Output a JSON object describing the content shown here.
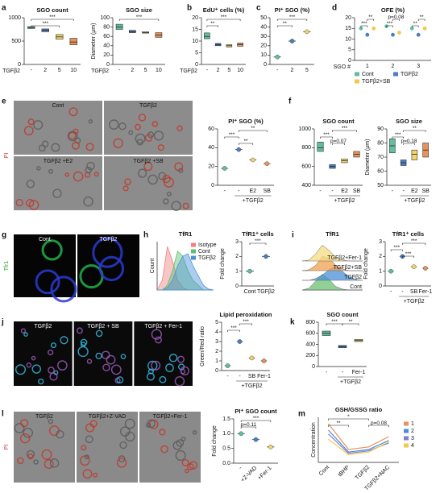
{
  "panels": [
    "a",
    "b",
    "c",
    "d",
    "e",
    "f",
    "g",
    "h",
    "i",
    "j",
    "k",
    "l",
    "m"
  ],
  "images": [
    {
      "labels": [
        "Cont",
        "TGFβ2",
        "TGFβ2 +E2",
        "TGFβ2 +SB"
      ],
      "side_label": "PI",
      "side_label_color": "#d62728",
      "background": "#8c8c8c"
    },
    {
      "labels": [
        "Cont",
        "TGFβ2"
      ],
      "side_label": "Tfr1",
      "side_label_color": "#2ca02c",
      "background": "#050505"
    },
    {
      "labels": [
        "TGFβ2",
        "TGFβ2 + SB",
        "TGFβ2 + Fer-1"
      ],
      "background": "#0a0a0a"
    },
    {
      "labels": [
        "TGFβ2",
        "TGFβ2+Z-VAD",
        "TGFβ2+Fer-1"
      ],
      "side_label": "PI",
      "side_label_color": "#d62728",
      "background": "#8a8a8a"
    }
  ],
  "chart_data": [
    {
      "type": "box",
      "title": "SGO count",
      "xlabel": "TGFβ2",
      "categories": [
        "-",
        "2",
        "5",
        "10"
      ],
      "values": [
        790,
        730,
        590,
        480
      ],
      "lower": [
        770,
        700,
        540,
        420
      ],
      "upper": [
        810,
        760,
        640,
        560
      ],
      "colors": [
        "#5fbfa0",
        "#4a7fc1",
        "#f2d66b",
        "#e8925a"
      ],
      "ylim": [
        0,
        1000
      ],
      "yticks": [
        0,
        500,
        1000
      ],
      "annotations": [
        "***",
        "***"
      ]
    },
    {
      "type": "box",
      "title": "SGO size",
      "ylabel": "Diameter (μm)",
      "xlabel": "TGFβ2",
      "categories": [
        "-",
        "2",
        "5",
        "10"
      ],
      "values": [
        80,
        70,
        68,
        63
      ],
      "lower": [
        75,
        68,
        67,
        58
      ],
      "upper": [
        86,
        73,
        70,
        68
      ],
      "colors": [
        "#5fbfa0",
        "#4a7fc1",
        "#f2d66b",
        "#e8925a"
      ],
      "ylim": [
        0,
        100
      ],
      "yticks": [
        0,
        20,
        40,
        60,
        80,
        100
      ],
      "annotations": [
        "***"
      ]
    },
    {
      "type": "box",
      "title": "EdU⁺ cells (%)",
      "xlabel": "TGFβ2",
      "categories": [
        "-",
        "2",
        "5",
        "10"
      ],
      "values": [
        12,
        8.5,
        8,
        8.5
      ],
      "lower": [
        11,
        8,
        7.5,
        7.8
      ],
      "upper": [
        13.5,
        9,
        8.5,
        9.2
      ],
      "colors": [
        "#5fbfa0",
        "#4a7fc1",
        "#f2d66b",
        "#e8925a"
      ],
      "ylim": [
        0,
        20
      ],
      "yticks": [
        0,
        5,
        10,
        15,
        20
      ],
      "annotations": [
        "***",
        "**"
      ]
    },
    {
      "type": "dot",
      "title": "PI⁺ SGO (%)",
      "categories": [
        "-",
        "2",
        "5"
      ],
      "values": [
        8,
        25,
        35
      ],
      "colors": [
        "#5fbfa0",
        "#4a7fc1",
        "#f2d66b"
      ],
      "ylim": [
        0,
        50
      ],
      "yticks": [
        0,
        10,
        20,
        30,
        40,
        50
      ],
      "annotations": [
        "***",
        "**"
      ]
    },
    {
      "type": "grouped",
      "title": "OFE (%)",
      "xlabel": "SGO #",
      "categories": [
        "1",
        "2",
        "3"
      ],
      "series": [
        {
          "name": "Cont",
          "color": "#5fbfa0",
          "values": [
            15,
            16,
            15
          ]
        },
        {
          "name": "TGFβ2",
          "color": "#4a7fc1",
          "values": [
            12,
            12,
            12
          ]
        },
        {
          "name": "TGFβ2+SB",
          "color": "#f2c94c",
          "values": [
            15,
            13,
            15
          ]
        }
      ],
      "ylim": [
        0,
        20
      ],
      "yticks": [
        0,
        5,
        10,
        15,
        20
      ],
      "legend": "bottom",
      "annotations": [
        "***",
        "**",
        "***",
        "p=0.08",
        "**",
        "**"
      ]
    },
    {
      "type": "dot",
      "title": "PI⁺ SGO (%)",
      "categories": [
        "-",
        "-",
        "E2",
        "SB"
      ],
      "group_label": "+TGFβ2",
      "values": [
        18,
        38,
        27,
        23
      ],
      "colors": [
        "#5fbfa0",
        "#4a7fc1",
        "#f2d66b",
        "#e8925a"
      ],
      "ylim": [
        0,
        60
      ],
      "yticks": [
        0,
        20,
        40,
        60
      ],
      "annotations": [
        "***",
        "**",
        "**"
      ]
    },
    {
      "type": "box",
      "title": "SGO count",
      "categories": [
        "-",
        "-",
        "E2",
        "SB"
      ],
      "group_label": "+TGFβ2",
      "values": [
        800,
        600,
        660,
        730
      ],
      "lower": [
        760,
        580,
        640,
        700
      ],
      "upper": [
        860,
        620,
        680,
        760
      ],
      "colors": [
        "#5fbfa0",
        "#4a7fc1",
        "#f2d66b",
        "#e8925a"
      ],
      "ylim": [
        400,
        1000
      ],
      "yticks": [
        400,
        600,
        800,
        1000
      ],
      "annotations": [
        "***",
        "p=0.07",
        "***"
      ]
    },
    {
      "type": "box",
      "title": "SGO size",
      "ylabel": "Diameter (μm)",
      "categories": [
        "-",
        "-",
        "E2",
        "SB"
      ],
      "group_label": "+TGFβ2",
      "values": [
        78,
        66,
        72,
        75
      ],
      "lower": [
        73,
        64,
        68,
        70
      ],
      "upper": [
        83,
        68,
        75,
        80
      ],
      "colors": [
        "#5fbfa0",
        "#4a7fc1",
        "#f2d66b",
        "#e8925a"
      ],
      "ylim": [
        50,
        90
      ],
      "yticks": [
        50,
        60,
        70,
        80,
        90
      ],
      "annotations": [
        "***",
        "p=0.18",
        "**"
      ]
    },
    {
      "type": "density",
      "title": "TfR1",
      "ylabel": "Count",
      "ylim": [
        0,
        1
      ],
      "legend": "top-right",
      "series": [
        {
          "name": "Isotype",
          "color": "#f08080",
          "values": [
            0,
            0.2,
            0.9,
            0.6,
            0.2,
            0.05,
            0,
            0,
            0,
            0,
            0,
            0
          ]
        },
        {
          "name": "Cont",
          "color": "#5fbf70",
          "values": [
            0,
            0,
            0.1,
            0.4,
            0.8,
            0.7,
            0.4,
            0.2,
            0.1,
            0,
            0,
            0
          ]
        },
        {
          "name": "TGFβ2",
          "color": "#4a90d9",
          "values": [
            0,
            0,
            0.05,
            0.2,
            0.5,
            0.7,
            0.75,
            0.5,
            0.3,
            0.1,
            0.02,
            0
          ]
        }
      ]
    },
    {
      "type": "dot",
      "title": "TfR1⁺ cells",
      "ylabel": "Fold change",
      "categories": [
        "Cont",
        "TGFβ2"
      ],
      "values": [
        1.0,
        2.0
      ],
      "colors": [
        "#5fbfa0",
        "#4a7fc1"
      ],
      "ylim": [
        0,
        3
      ],
      "yticks": [
        0,
        1,
        2,
        3
      ],
      "annotations": [
        "***"
      ]
    },
    {
      "type": "ridge",
      "title": "TfR1",
      "series": [
        {
          "name": "Cont",
          "color": "#6cc070",
          "values": [
            0,
            0.1,
            0.5,
            0.9,
            0.6,
            0.2,
            0.05,
            0,
            0,
            0
          ]
        },
        {
          "name": "TGFβ2",
          "color": "#4a90d9",
          "values": [
            0,
            0,
            0.1,
            0.3,
            0.6,
            0.8,
            0.5,
            0.2,
            0.05,
            0
          ]
        },
        {
          "name": "TGFβ2+SB",
          "color": "#f0a050",
          "values": [
            0,
            0.05,
            0.3,
            0.8,
            0.7,
            0.3,
            0.1,
            0,
            0,
            0
          ]
        },
        {
          "name": "TGFβ2+Fer-1",
          "color": "#f5dd80",
          "values": [
            0,
            0.05,
            0.4,
            0.9,
            0.6,
            0.2,
            0.05,
            0,
            0,
            0
          ]
        }
      ]
    },
    {
      "type": "dot",
      "title": "TfR1⁺ cells",
      "ylabel": "Fold change",
      "categories": [
        "-",
        "-",
        "SB",
        "Fer-1"
      ],
      "group_label": "+TGFβ2",
      "values": [
        1.0,
        2.0,
        1.3,
        1.2
      ],
      "colors": [
        "#5fbfa0",
        "#4a7fc1",
        "#f2d66b",
        "#e8925a"
      ],
      "ylim": [
        0,
        3
      ],
      "yticks": [
        0,
        1,
        2,
        3
      ],
      "annotations": [
        "***",
        "***",
        "***"
      ]
    },
    {
      "type": "dot",
      "title": "Lipid peroxidation",
      "ylabel": "Green/Red ratio",
      "categories": [
        "-",
        "-",
        "SB",
        "Fer-1"
      ],
      "group_label": "+TGFβ2",
      "values": [
        0.5,
        3.0,
        1.3,
        1.0
      ],
      "colors": [
        "#5fbfa0",
        "#4a7fc1",
        "#f2d66b",
        "#e8925a"
      ],
      "ylim": [
        0,
        5
      ],
      "yticks": [
        0,
        1,
        2,
        3,
        4,
        5
      ],
      "annotations": [
        "***",
        "***"
      ]
    },
    {
      "type": "box",
      "title": "SGO count",
      "categories": [
        "-",
        "-",
        "Fer-1"
      ],
      "group_label": "+TGFβ2",
      "values": [
        600,
        360,
        470
      ],
      "lower": [
        560,
        340,
        450
      ],
      "upper": [
        640,
        380,
        490
      ],
      "colors": [
        "#5fbfa0",
        "#4a7fc1",
        "#f2d66b"
      ],
      "ylim": [
        0,
        800
      ],
      "yticks": [
        0,
        200,
        400,
        600,
        800
      ],
      "annotations": [
        "***",
        "**"
      ]
    },
    {
      "type": "dot",
      "title": "PI⁺ SGO count",
      "ylabel": "Fold change",
      "categories": [
        "-",
        "+Z-VAD",
        "+Fer-1"
      ],
      "rotate_labels": true,
      "values": [
        1.0,
        0.8,
        0.55
      ],
      "colors": [
        "#5fbfa0",
        "#4a7fc1",
        "#f2d66b"
      ],
      "ylim": [
        0,
        1.5
      ],
      "yticks": [
        {
          "value": 0,
          "label": "0.0"
        },
        0.5,
        {
          "value": 1,
          "label": "1.0"
        },
        1.5
      ],
      "annotations": [
        "p=0.11",
        "***"
      ]
    },
    {
      "type": "line",
      "title": "GSH/GSSG ratio",
      "ylabel": "Concentration",
      "categories": [
        "Cont",
        "tBHP",
        "TGFβ2",
        "TGFβ2+NAC"
      ],
      "rotate_labels": true,
      "ylim": [
        0,
        3.5
      ],
      "legend": "right",
      "series": [
        {
          "name": "1",
          "color": "#e8925a",
          "values": [
            3.0,
            1.0,
            1.2,
            2.0
          ]
        },
        {
          "name": "2",
          "color": "#4a90d9",
          "values": [
            2.5,
            0.8,
            1.0,
            1.7
          ]
        },
        {
          "name": "3",
          "color": "#7f7fd0",
          "values": [
            2.2,
            0.7,
            0.9,
            1.5
          ]
        },
        {
          "name": "4",
          "color": "#f2c94c",
          "values": [
            1.8,
            0.6,
            0.8,
            1.6
          ]
        }
      ],
      "annotations": [
        "**",
        "*",
        "p=0.08"
      ]
    }
  ]
}
